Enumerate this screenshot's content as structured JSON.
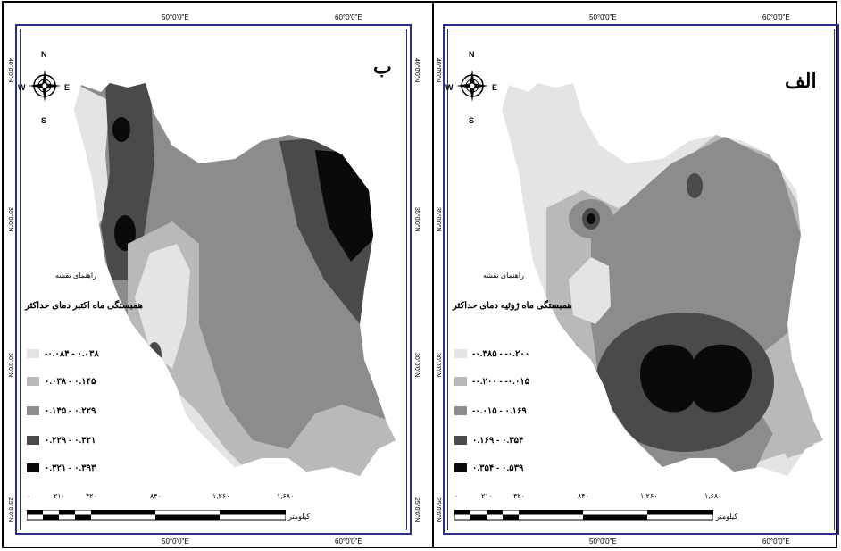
{
  "panels": {
    "right_map": {
      "label": "ب",
      "legend_small_title": "راهنمای نقشه",
      "legend_title": "همبستگی ماه اکتبر دمای حداکثر",
      "legend": [
        {
          "range": "-۰.۰۸۴ - ۰.۰۳۸",
          "color": "#e4e4e4"
        },
        {
          "range": "۰.۰۳۸ - ۰.۱۴۵",
          "color": "#b9b9b9"
        },
        {
          "range": "۰.۱۴۵ - ۰.۲۲۹",
          "color": "#8c8c8c"
        },
        {
          "range": "۰.۲۲۹ - ۰.۳۲۱",
          "color": "#4a4a4a"
        },
        {
          "range": "۰.۳۲۱ - ۰.۳۹۳",
          "color": "#0a0a0a"
        }
      ]
    },
    "left_map": {
      "label": "الف",
      "legend_small_title": "راهنمای نقشه",
      "legend_title": "همبستگی ماه ژوئیه دمای حداکثر",
      "legend": [
        {
          "range": "-۰.۳۸۵ - -۰.۲۰۰",
          "color": "#e4e4e4"
        },
        {
          "range": "-۰.۲۰۰ - -۰.۰۱۵",
          "color": "#b9b9b9"
        },
        {
          "range": "-۰.۰۱۵ - ۰.۱۶۹",
          "color": "#8c8c8c"
        },
        {
          "range": "۰.۱۶۹ - ۰.۳۵۴",
          "color": "#4a4a4a"
        },
        {
          "range": "۰.۳۵۴ - ۰.۵۳۹",
          "color": "#0a0a0a"
        }
      ]
    }
  },
  "graticule": {
    "lon_50": "50°0'0\"E",
    "lon_60": "60°0'0\"E",
    "lat_40": "40°0'0\"N",
    "lat_35": "35°0'0\"N",
    "lat_30": "30°0'0\"N",
    "lat_25": "25°0'0\"N"
  },
  "compass": {
    "n": "N",
    "s": "S",
    "e": "E",
    "w": "W"
  },
  "scale": {
    "numbers": [
      "۰",
      "۲۱۰",
      "۴۲۰",
      "۸۴۰",
      "۱,۲۶۰",
      "۱,۶۸۰"
    ],
    "unit": "کیلومتر"
  }
}
